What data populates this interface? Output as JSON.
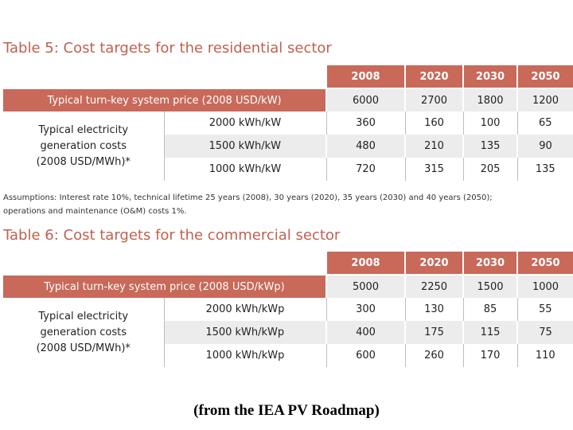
{
  "table5": {
    "title": "Table 5: Cost targets for the residential sector",
    "years": [
      "2008",
      "2020",
      "2030",
      "2050"
    ],
    "price_label": "Typical turn-key system price (2008 USD/kW)",
    "price_values": [
      "6000",
      "2700",
      "1800",
      "1200"
    ],
    "cost_label_lines": [
      "Typical electricity",
      "generation costs",
      "(2008 USD/MWh)*"
    ],
    "rows": [
      {
        "label": "2000 kWh/kW",
        "values": [
          "360",
          "160",
          "100",
          "65"
        ]
      },
      {
        "label": "1500 kWh/kW",
        "values": [
          "480",
          "210",
          "135",
          "90"
        ]
      },
      {
        "label": "1000 kWh/kW",
        "values": [
          "720",
          "315",
          "205",
          "135"
        ]
      }
    ]
  },
  "assumptions": {
    "line1": "Assumptions: Interest rate 10%, technical lifetime 25 years (2008), 30 years (2020), 35 years (2030) and 40 years (2050);",
    "line2": "operations and maintenance (O&M) costs 1%."
  },
  "table6": {
    "title": "Table 6: Cost targets for the commercial sector",
    "years": [
      "2008",
      "2020",
      "2030",
      "2050"
    ],
    "price_label": "Typical turn-key system price (2008 USD/kWp)",
    "price_values": [
      "5000",
      "2250",
      "1500",
      "1000"
    ],
    "cost_label_lines": [
      "Typical electricity",
      "generation costs",
      "(2008 USD/MWh)*"
    ],
    "rows": [
      {
        "label": "2000 kWh/kWp",
        "values": [
          "300",
          "130",
          "85",
          "55"
        ]
      },
      {
        "label": "1500 kWh/kWp",
        "values": [
          "400",
          "175",
          "115",
          "75"
        ]
      },
      {
        "label": "1000 kWh/kWp",
        "values": [
          "600",
          "260",
          "170",
          "110"
        ]
      }
    ]
  },
  "source": "(from the IEA PV Roadmap)",
  "colors": {
    "accent": "#c8695a",
    "title": "#c0614f",
    "shade": "#ececec"
  }
}
